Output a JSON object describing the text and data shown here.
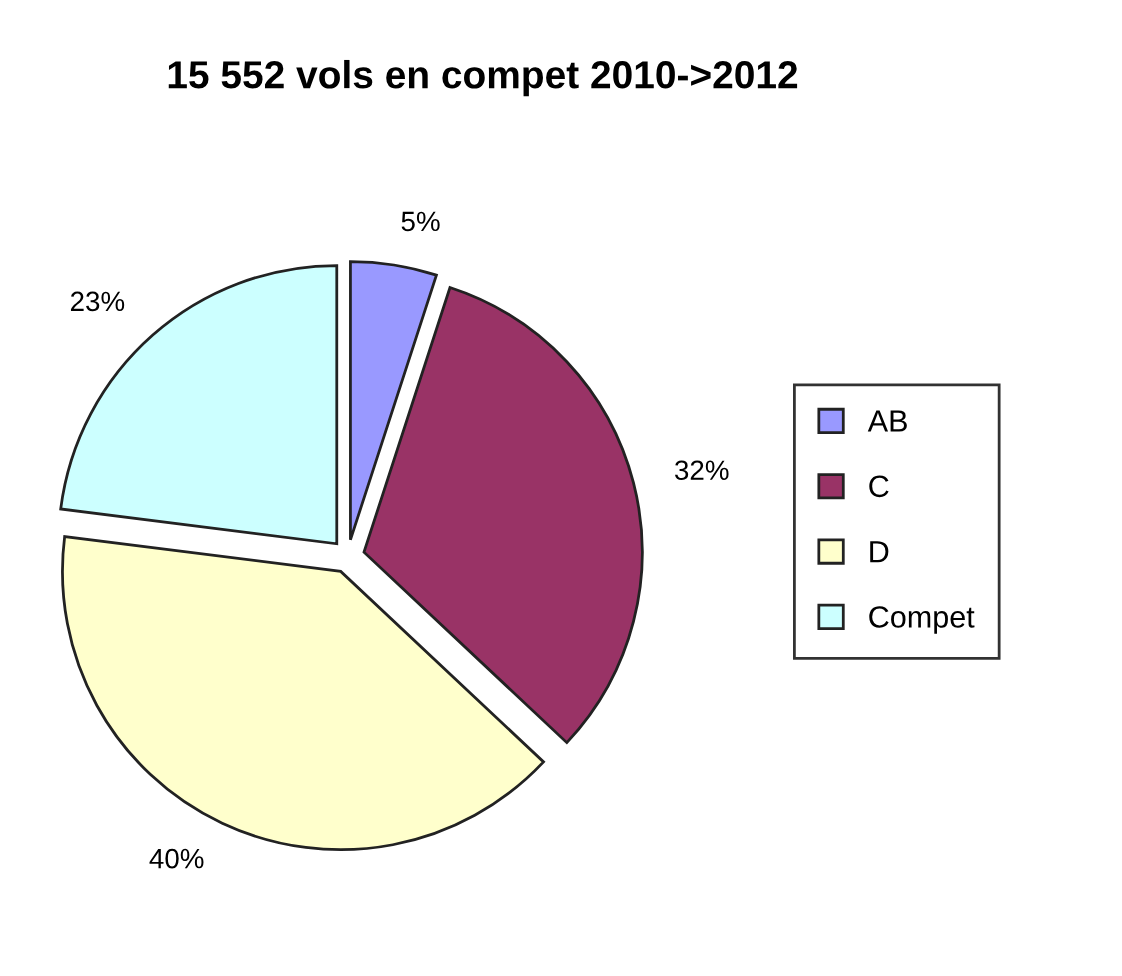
{
  "chart_data": {
    "type": "pie",
    "title": "15 552 vols en compet 2010->2012",
    "categories": [
      "AB",
      "C",
      "D",
      "Compet"
    ],
    "values": [
      5,
      32,
      40,
      23
    ],
    "value_labels": [
      "5%",
      "32%",
      "40%",
      "23%"
    ],
    "colors": [
      "#9999ff",
      "#993366",
      "#ffffcc",
      "#ccffff"
    ],
    "legend": "right"
  }
}
